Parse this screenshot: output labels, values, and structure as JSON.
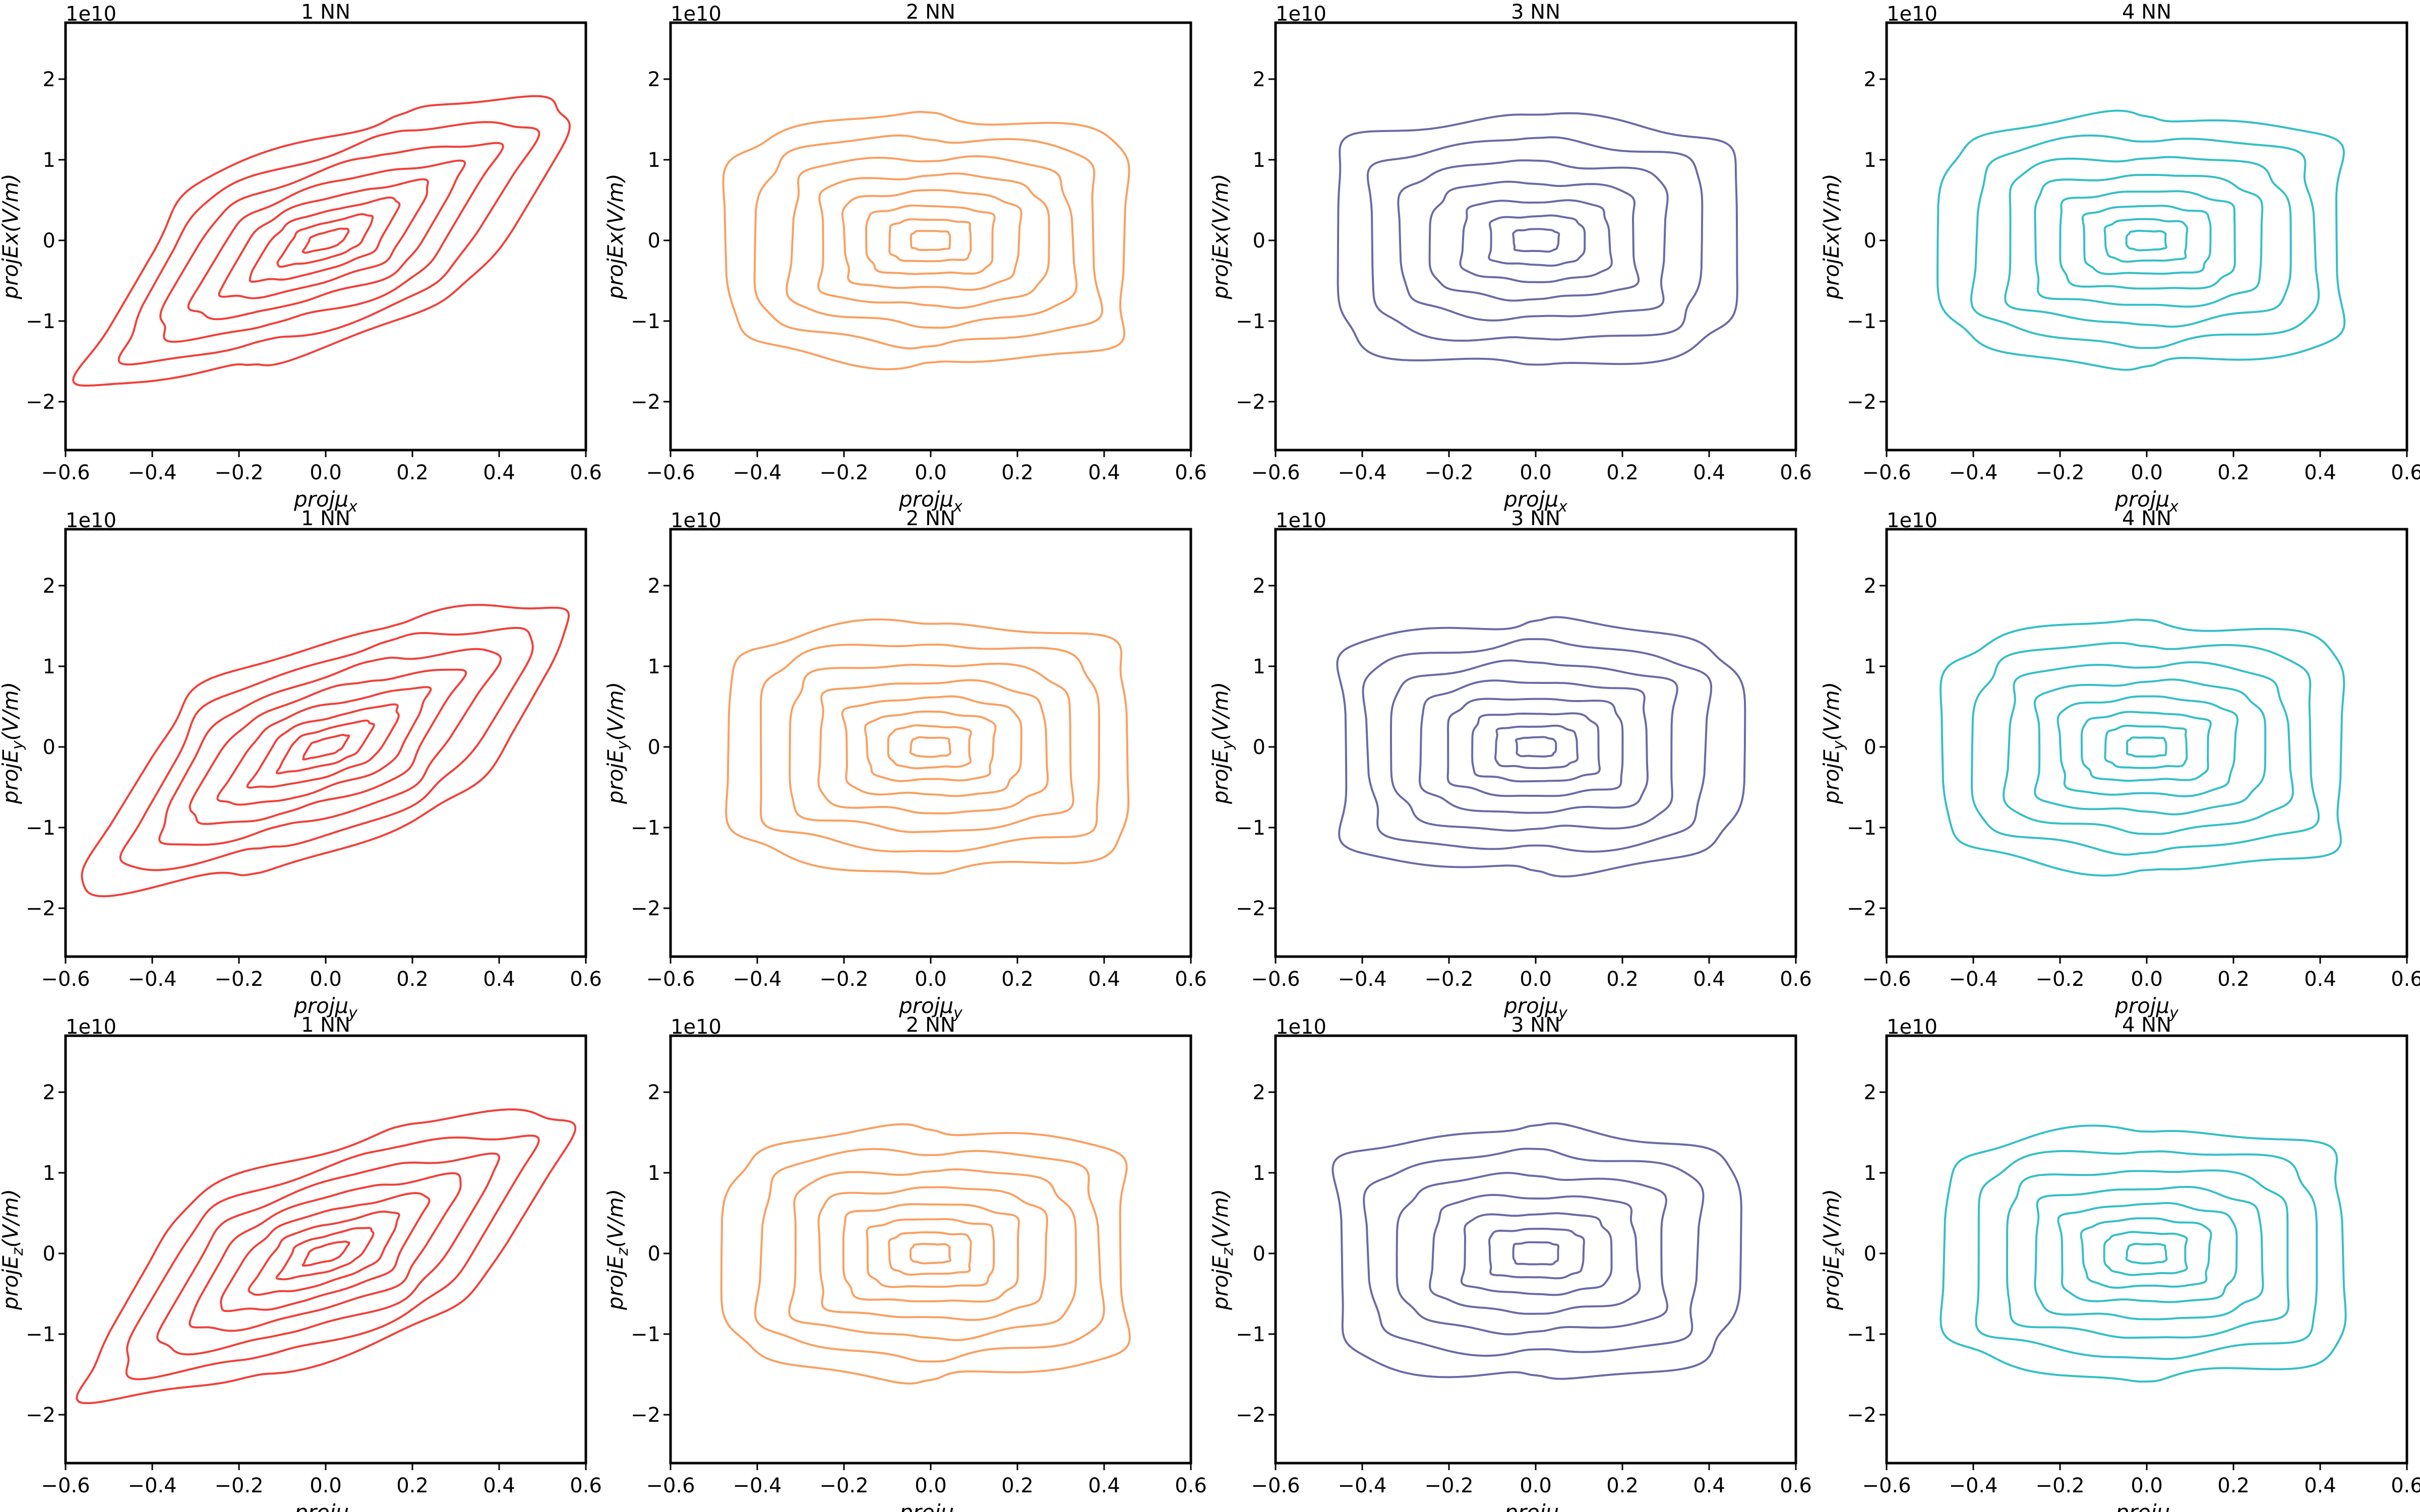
{
  "figure": {
    "rows": 3,
    "cols": 4
  },
  "chart_data": [
    {
      "type": "contour",
      "title": "1 NN",
      "xlabel": "projμ",
      "xsub": "x",
      "ylabel_pre": "projEx(V/m)",
      "ylabel_sub": "",
      "ylabel_post": "",
      "offset": "1e10",
      "xlim": [
        -0.6,
        0.6
      ],
      "ylim": [
        -2.6,
        2.7
      ],
      "xticks": [
        "−0.6",
        "−0.4",
        "−0.2",
        "0.0",
        "0.2",
        "0.4",
        "0.6"
      ],
      "yticks": [
        "−2",
        "−1",
        "0",
        "1",
        "2"
      ],
      "color": "#f0413a",
      "shape": "tilted",
      "levels": 8
    },
    {
      "type": "contour",
      "title": "2 NN",
      "xlabel": "projμ",
      "xsub": "x",
      "ylabel_pre": "projEx(V/m)",
      "ylabel_sub": "",
      "ylabel_post": "",
      "offset": "1e10",
      "xlim": [
        -0.6,
        0.6
      ],
      "ylim": [
        -2.6,
        2.7
      ],
      "xticks": [
        "−0.6",
        "−0.4",
        "−0.2",
        "0.0",
        "0.2",
        "0.4",
        "0.6"
      ],
      "yticks": [
        "−2",
        "−1",
        "0",
        "1",
        "2"
      ],
      "color": "#f9a062",
      "shape": "bowtie",
      "levels": 8
    },
    {
      "type": "contour",
      "title": "3 NN",
      "xlabel": "projμ",
      "xsub": "x",
      "ylabel_pre": "projEx(V/m)",
      "ylabel_sub": "",
      "ylabel_post": "",
      "offset": "1e10",
      "xlim": [
        -0.6,
        0.6
      ],
      "ylim": [
        -2.6,
        2.7
      ],
      "xticks": [
        "−0.6",
        "−0.4",
        "−0.2",
        "0.0",
        "0.2",
        "0.4",
        "0.6"
      ],
      "yticks": [
        "−2",
        "−1",
        "0",
        "1",
        "2"
      ],
      "color": "#6b6aa6",
      "shape": "bowtie",
      "levels": 7
    },
    {
      "type": "contour",
      "title": "4 NN",
      "xlabel": "projμ",
      "xsub": "x",
      "ylabel_pre": "projEx(V/m)",
      "ylabel_sub": "",
      "ylabel_post": "",
      "offset": "1e10",
      "xlim": [
        -0.6,
        0.6
      ],
      "ylim": [
        -2.6,
        2.7
      ],
      "xticks": [
        "−0.6",
        "−0.4",
        "−0.2",
        "0.0",
        "0.2",
        "0.4",
        "0.6"
      ],
      "yticks": [
        "−2",
        "−1",
        "0",
        "1",
        "2"
      ],
      "color": "#35bfc6",
      "shape": "bowtie",
      "levels": 8
    },
    {
      "type": "contour",
      "title": "1 NN",
      "xlabel": "projμ",
      "xsub": "y",
      "ylabel_pre": "projE",
      "ylabel_sub": "y",
      "ylabel_post": "(V/m)",
      "offset": "1e10",
      "xlim": [
        -0.6,
        0.6
      ],
      "ylim": [
        -2.6,
        2.7
      ],
      "xticks": [
        "−0.6",
        "−0.4",
        "−0.2",
        "0.0",
        "0.2",
        "0.4",
        "0.6"
      ],
      "yticks": [
        "−2",
        "−1",
        "0",
        "1",
        "2"
      ],
      "color": "#f0413a",
      "shape": "tilted",
      "levels": 8
    },
    {
      "type": "contour",
      "title": "2 NN",
      "xlabel": "projμ",
      "xsub": "y",
      "ylabel_pre": "projE",
      "ylabel_sub": "y",
      "ylabel_post": "(V/m)",
      "offset": "1e10",
      "xlim": [
        -0.6,
        0.6
      ],
      "ylim": [
        -2.6,
        2.7
      ],
      "xticks": [
        "−0.6",
        "−0.4",
        "−0.2",
        "0.0",
        "0.2",
        "0.4",
        "0.6"
      ],
      "yticks": [
        "−2",
        "−1",
        "0",
        "1",
        "2"
      ],
      "color": "#f9a062",
      "shape": "bowtie",
      "levels": 8
    },
    {
      "type": "contour",
      "title": "3 NN",
      "xlabel": "projμ",
      "xsub": "y",
      "ylabel_pre": "projE",
      "ylabel_sub": "y",
      "ylabel_post": "(V/m)",
      "offset": "1e10",
      "xlim": [
        -0.6,
        0.6
      ],
      "ylim": [
        -2.6,
        2.7
      ],
      "xticks": [
        "−0.6",
        "−0.4",
        "−0.2",
        "0.0",
        "0.2",
        "0.4",
        "0.6"
      ],
      "yticks": [
        "−2",
        "−1",
        "0",
        "1",
        "2"
      ],
      "color": "#6b6aa6",
      "shape": "bowtie",
      "levels": 8
    },
    {
      "type": "contour",
      "title": "4 NN",
      "xlabel": "projμ",
      "xsub": "y",
      "ylabel_pre": "projE",
      "ylabel_sub": "y",
      "ylabel_post": "(V/m)",
      "offset": "1e10",
      "xlim": [
        -0.6,
        0.6
      ],
      "ylim": [
        -2.6,
        2.7
      ],
      "xticks": [
        "−0.6",
        "−0.4",
        "−0.2",
        "0.0",
        "0.2",
        "0.4",
        "0.6"
      ],
      "yticks": [
        "−2",
        "−1",
        "0",
        "1",
        "2"
      ],
      "color": "#35bfc6",
      "shape": "bowtie",
      "levels": 8
    },
    {
      "type": "contour",
      "title": "1 NN",
      "xlabel": "projμ",
      "xsub": "z",
      "ylabel_pre": "projE",
      "ylabel_sub": "z",
      "ylabel_post": "(V/m)",
      "offset": "1e10",
      "xlim": [
        -0.6,
        0.6
      ],
      "ylim": [
        -2.6,
        2.7
      ],
      "xticks": [
        "−0.6",
        "−0.4",
        "−0.2",
        "0.0",
        "0.2",
        "0.4",
        "0.6"
      ],
      "yticks": [
        "−2",
        "−1",
        "0",
        "1",
        "2"
      ],
      "color": "#f0413a",
      "shape": "tilted",
      "levels": 8
    },
    {
      "type": "contour",
      "title": "2 NN",
      "xlabel": "projμ",
      "xsub": "z",
      "ylabel_pre": "projE",
      "ylabel_sub": "z",
      "ylabel_post": "(V/m)",
      "offset": "1e10",
      "xlim": [
        -0.6,
        0.6
      ],
      "ylim": [
        -2.6,
        2.7
      ],
      "xticks": [
        "−0.6",
        "−0.4",
        "−0.2",
        "0.0",
        "0.2",
        "0.4",
        "0.6"
      ],
      "yticks": [
        "−2",
        "−1",
        "0",
        "1",
        "2"
      ],
      "color": "#f9a062",
      "shape": "bowtie",
      "levels": 8
    },
    {
      "type": "contour",
      "title": "3 NN",
      "xlabel": "projμ",
      "xsub": "z",
      "ylabel_pre": "projE",
      "ylabel_sub": "z",
      "ylabel_post": "(V/m)",
      "offset": "1e10",
      "xlim": [
        -0.6,
        0.6
      ],
      "ylim": [
        -2.6,
        2.7
      ],
      "xticks": [
        "−0.6",
        "−0.4",
        "−0.2",
        "0.0",
        "0.2",
        "0.4",
        "0.6"
      ],
      "yticks": [
        "−2",
        "−1",
        "0",
        "1",
        "2"
      ],
      "color": "#6b6aa6",
      "shape": "bowtie",
      "levels": 7
    },
    {
      "type": "contour",
      "title": "4 NN",
      "xlabel": "projμ",
      "xsub": "z",
      "ylabel_pre": "projE",
      "ylabel_sub": "z",
      "ylabel_post": "(V/m)",
      "offset": "1e10",
      "xlim": [
        -0.6,
        0.6
      ],
      "ylim": [
        -2.6,
        2.7
      ],
      "xticks": [
        "−0.6",
        "−0.4",
        "−0.2",
        "0.0",
        "0.2",
        "0.4",
        "0.6"
      ],
      "yticks": [
        "−2",
        "−1",
        "0",
        "1",
        "2"
      ],
      "color": "#35bfc6",
      "shape": "bowtie",
      "levels": 8
    }
  ]
}
